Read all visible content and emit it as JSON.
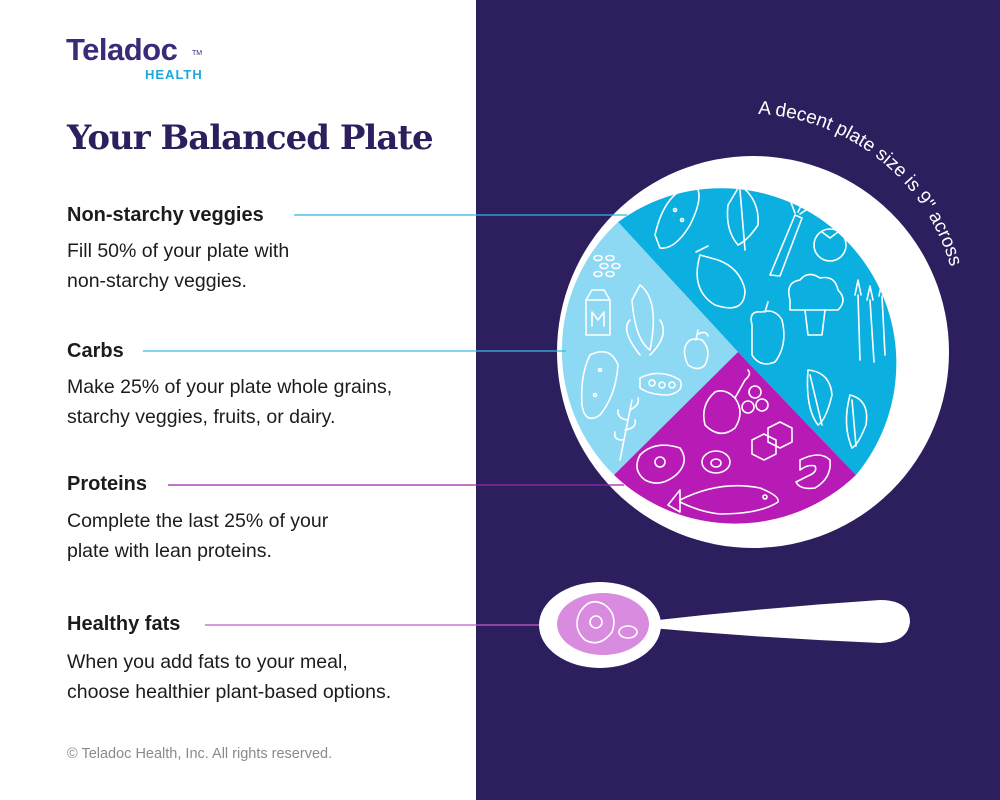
{
  "brand": {
    "name": "Teladoc",
    "sub": "HEALTH",
    "tm": "TM"
  },
  "title": "Your Balanced Plate",
  "sections": [
    {
      "heading": "Non-starchy veggies",
      "lines": [
        "Fill 50% of your plate with",
        "non-starchy veggies."
      ]
    },
    {
      "heading": "Carbs",
      "lines": [
        "Make 25% of your plate whole grains,",
        "starchy veggies, fruits, or dairy."
      ]
    },
    {
      "heading": "Proteins",
      "lines": [
        "Complete the last 25% of your",
        "plate with lean proteins."
      ]
    },
    {
      "heading": "Healthy fats",
      "lines": [
        "When you add fats to your meal,",
        "choose healthier plant-based options."
      ]
    }
  ],
  "plate_caption": "A decent plate size is 9\" across",
  "copyright": "© Teladoc Health, Inc. All rights reserved.",
  "colors": {
    "background_dark": "#2d1f5e",
    "veggies": "#0bb0e0",
    "carbs": "#8dd8f2",
    "proteins": "#b81bb5",
    "fats": "#d98be0",
    "veggie_line": "#2bb7e6",
    "carb_line": "#3db7e6",
    "protein_line": "#9d24a8",
    "fat_line": "#c25cc7"
  },
  "icons": {
    "veggies": [
      "cucumber-icon",
      "lettuce-icon",
      "carrot-icon",
      "tomato-icon",
      "eggplant-icon",
      "broccoli-icon",
      "bell-pepper-icon",
      "asparagus-icon",
      "spinach-leaf-icon"
    ],
    "carbs": [
      "grains-icon",
      "milk-carton-icon",
      "corn-icon",
      "apple-icon",
      "potato-icon",
      "peas-icon",
      "wheat-icon"
    ],
    "proteins": [
      "drumstick-icon",
      "beans-icon",
      "tofu-icon",
      "steak-icon",
      "egg-icon",
      "shrimp-icon",
      "fish-icon"
    ],
    "fats": [
      "avocado-icon",
      "nut-icon"
    ]
  }
}
